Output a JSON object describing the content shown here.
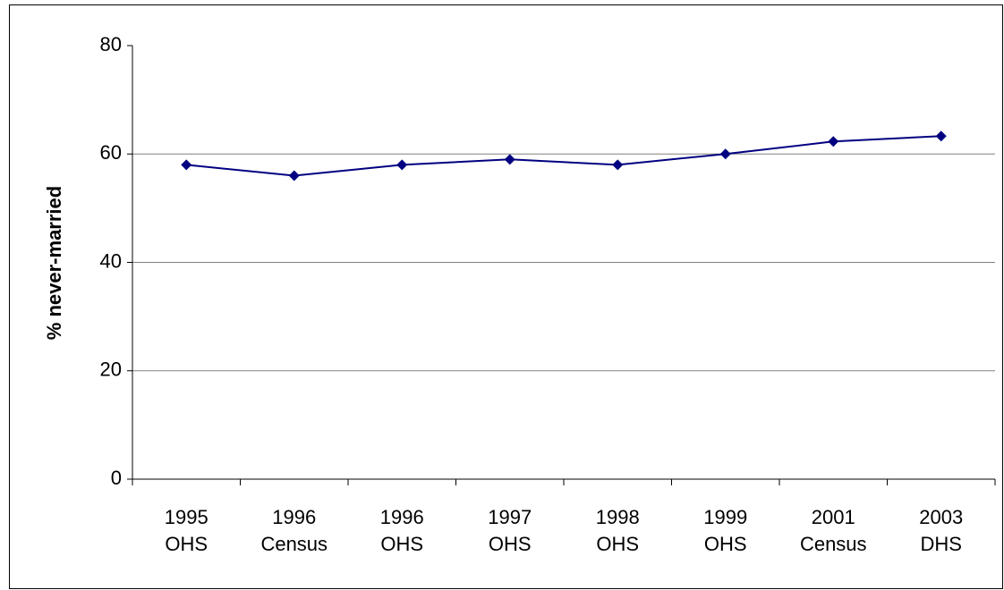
{
  "chart_data": {
    "type": "line",
    "y_label": "% never-married",
    "categories": [
      [
        "1995",
        "OHS"
      ],
      [
        "1996",
        "Census"
      ],
      [
        "1996",
        "OHS"
      ],
      [
        "1997",
        "OHS"
      ],
      [
        "1998",
        "OHS"
      ],
      [
        "1999",
        "OHS"
      ],
      [
        "2001",
        "Census"
      ],
      [
        "2003",
        "DHS"
      ]
    ],
    "series": [
      {
        "color": "#000080",
        "values": [
          58,
          56,
          58,
          59,
          58,
          60,
          62.3,
          63.3
        ]
      }
    ],
    "ylim": [
      0,
      80
    ],
    "yticks": [
      0,
      20,
      40,
      60,
      80
    ],
    "grid": true
  }
}
